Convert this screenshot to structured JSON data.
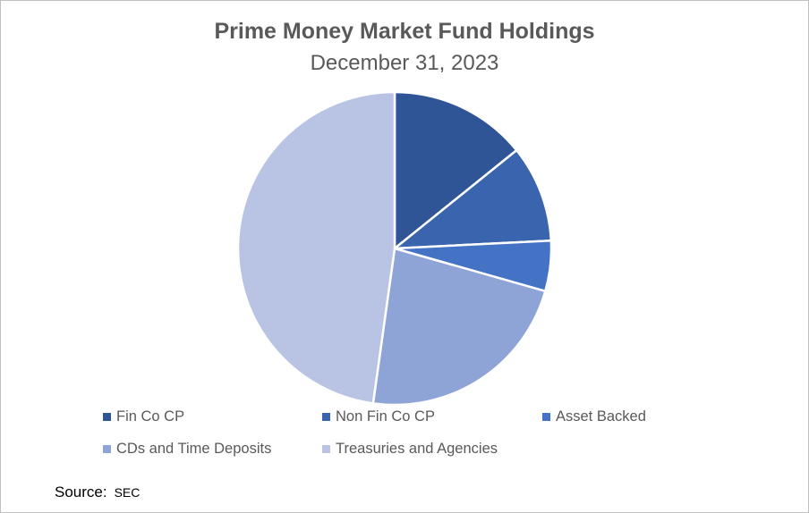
{
  "chart_data": {
    "type": "pie",
    "title": "Prime Money Market Fund Holdings",
    "subtitle": "December 31, 2023",
    "legend_position": "bottom",
    "slices": [
      {
        "label": "Fin Co CP",
        "value": 14.2,
        "color": "#2f5597"
      },
      {
        "label": "Non Fin Co CP",
        "value": 10.0,
        "color": "#3a65ae"
      },
      {
        "label": "Asset Backed",
        "value": 5.2,
        "color": "#4472c4"
      },
      {
        "label": "CDs and Time Deposits",
        "value": 22.8,
        "color": "#8fa4d6"
      },
      {
        "label": "Treasuries and Agencies",
        "value": 47.8,
        "color": "#b9c3e3"
      }
    ]
  },
  "source": {
    "label": "Source:",
    "value": "SEC"
  }
}
